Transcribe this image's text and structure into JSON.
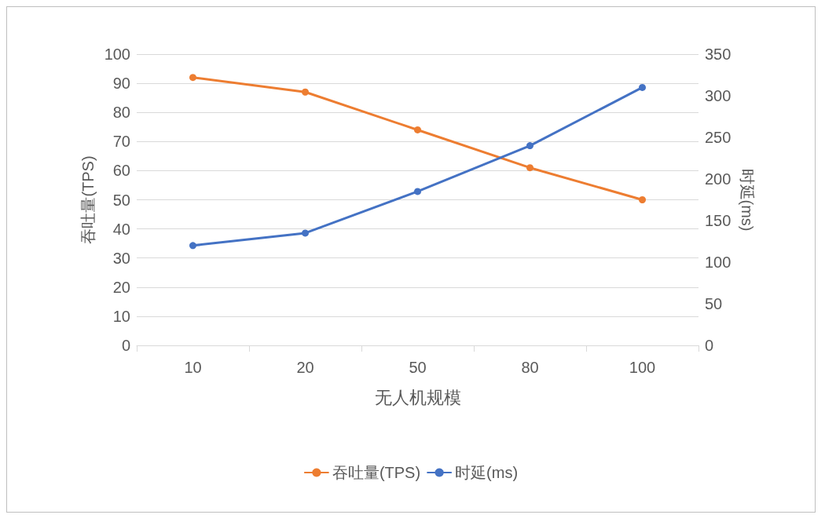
{
  "chart_data": {
    "type": "line",
    "xlabel": "无人机规模",
    "ylabel": "吞吐量(TPS)",
    "y2label": "时延(ms)",
    "categories": [
      "10",
      "20",
      "50",
      "80",
      "100"
    ],
    "series": [
      {
        "name": "吞吐量(TPS)",
        "color": "#ed7d31",
        "values": [
          92,
          87,
          74,
          61,
          50
        ]
      },
      {
        "name": "时延(ms)",
        "color": "#4472c4",
        "values": [
          120,
          135,
          185,
          240,
          310
        ],
        "axis": "y2"
      }
    ],
    "ylim": [
      0,
      100
    ],
    "yticks": [
      0,
      10,
      20,
      30,
      40,
      50,
      60,
      70,
      80,
      90,
      100
    ],
    "y2lim": [
      0,
      350
    ],
    "y2ticks": [
      0,
      50,
      100,
      150,
      200,
      250,
      300,
      350
    ],
    "grid": "y",
    "legend": "bottom",
    "marker": "circle",
    "line_style": "solid"
  }
}
